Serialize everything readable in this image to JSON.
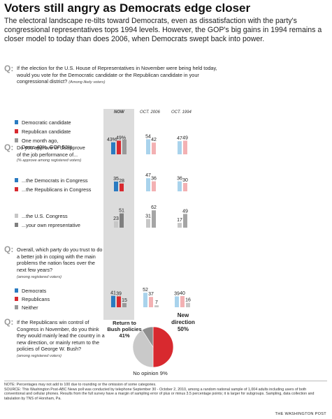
{
  "headline": "Voters still angry as Democrats edge closer",
  "intro": "The electoral landscape re-tilts toward Democrats, even as dissatisfaction with the party's congressional representatives tops 1994 levels. However, the GOP's big gains in 1994 remains a closer model to today than does 2006, when Democrats swept back into power.",
  "q_marker": "Q:",
  "columns": {
    "now": "NOW",
    "oct2006": "OCT. 2006",
    "oct1994": "OCT. 1994"
  },
  "colors": {
    "dem": "#2a7bc1",
    "rep": "#d8292f",
    "gray": "#999999",
    "dark_gray": "#7f7f7f",
    "dem_light": "#a9d3ec",
    "rep_light": "#f3b1b3",
    "gray_light": "#c7c7c7",
    "dark_gray_light": "#a5a5a5",
    "band": "#dcdcdc"
  },
  "q1": {
    "text": "If the election for the U.S. House of Representatives in November were being held today, would you vote for the Democratic candidate or the Republican candidate in your congressional district?",
    "note": "(Among likely voters)",
    "legend": [
      "Democratic candidate",
      "Republican candidate",
      "One month ago,",
      "Dems 40%, GOP 53%"
    ]
  },
  "q2": {
    "text_line1": "Do you approve or disapprove",
    "text_line2": "of the job performance of...",
    "note": "(% approve among registered voters)",
    "legend_a": [
      "...the Democrats in Congress",
      "...the Republicans in Congress"
    ],
    "legend_b": [
      "...the U.S. Congress",
      "...your own representative"
    ]
  },
  "q3": {
    "text": "Overall, which party do you trust to do a better job in coping with the main problems the nation faces over the next few years?",
    "note": "(among registered voters)",
    "legend": [
      "Democrats",
      "Republicans",
      "Neither"
    ]
  },
  "q4": {
    "text": "If the Republicans win control of Congress in November, do you think they would mainly lead the country in a new direction, or mainly return to the policies of George W. Bush?",
    "note": "(among registered voters)"
  },
  "chart_data": [
    {
      "type": "bar",
      "categories": [
        "NOW",
        "OCT. 2006",
        "OCT. 1994"
      ],
      "series": [
        {
          "name": "Democratic candidate",
          "values": [
            43,
            54,
            47
          ]
        },
        {
          "name": "Republican candidate",
          "values": [
            49,
            42,
            49
          ]
        },
        {
          "name": "One month ago, Dems 40%, GOP 53%",
          "values": [
            53,
            null,
            null
          ]
        }
      ],
      "labels": [
        "43%",
        "49%",
        "54",
        "42",
        "47",
        "49"
      ]
    },
    {
      "type": "bar",
      "categories": [
        "NOW",
        "OCT. 2006",
        "OCT. 1994"
      ],
      "series": [
        {
          "name": "...the Democrats in Congress",
          "values": [
            35,
            47,
            36
          ]
        },
        {
          "name": "...the Republicans in Congress",
          "values": [
            28,
            36,
            30
          ]
        }
      ]
    },
    {
      "type": "bar",
      "categories": [
        "NOW",
        "OCT. 2006",
        "OCT. 1994"
      ],
      "series": [
        {
          "name": "...the U.S. Congress",
          "values": [
            23,
            31,
            17
          ]
        },
        {
          "name": "...your own representative",
          "values": [
            51,
            62,
            49
          ]
        }
      ]
    },
    {
      "type": "bar",
      "categories": [
        "NOW",
        "OCT. 2006",
        "OCT. 1994"
      ],
      "series": [
        {
          "name": "Democrats",
          "values": [
            41,
            52,
            39
          ]
        },
        {
          "name": "Republicans",
          "values": [
            39,
            37,
            40
          ]
        },
        {
          "name": "Neither",
          "values": [
            15,
            7,
            16
          ]
        }
      ]
    },
    {
      "type": "pie",
      "slices": [
        {
          "name": "New direction",
          "value": 50,
          "label_line1": "New",
          "label_line2": "direction",
          "pct": "50%"
        },
        {
          "name": "Return to Bush policies",
          "value": 41,
          "label_line1": "Return to",
          "label_line2": "Bush policies",
          "pct": "41%"
        },
        {
          "name": "No opinion",
          "value": 9,
          "label": "No opinion 9%"
        }
      ]
    }
  ],
  "footnote": {
    "line1": "NOTE: Percentages may not add to 100 due to rounding or the omission of some categories.",
    "line2": "SOURCE: This Washington Post-ABC News poll was conducted by telephone September 30 - October 2, 2010, among a random national sample of 1,004 adults including users of both conventional and cellular phones. Results from the full survey have a margin of sampling error of plus or minus 3.5 percentage points; it is larger for subgroups. Sampling, data collection and tabulation by TNS of Horsham, Pa."
  },
  "credit": "THE WASHINGTON POST"
}
